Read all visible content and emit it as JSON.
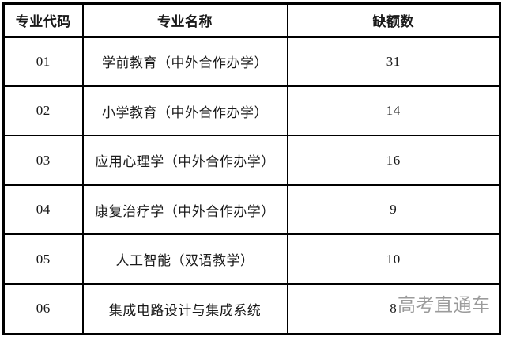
{
  "table": {
    "title_semantic": "major-vacancy-table",
    "headers": {
      "code": "专业代码",
      "name": "专业名称",
      "vacancy": "缺额数"
    },
    "rows": [
      {
        "code": "01",
        "name": "学前教育（中外合作办学）",
        "vacancy": "31"
      },
      {
        "code": "02",
        "name": "小学教育（中外合作办学）",
        "vacancy": "14"
      },
      {
        "code": "03",
        "name": "应用心理学（中外合作办学）",
        "vacancy": "16"
      },
      {
        "code": "04",
        "name": "康复治疗学（中外合作办学）",
        "vacancy": "9"
      },
      {
        "code": "05",
        "name": "人工智能（双语教学）",
        "vacancy": "10"
      },
      {
        "code": "06",
        "name": "集成电路设计与集成系统",
        "vacancy": "8"
      }
    ],
    "watermark": "高考直通车",
    "colors": {
      "background": "#ffffff",
      "border": "#000000",
      "text": "#1a1a1a",
      "watermark": "#9b9b9b"
    }
  },
  "chart_data": {
    "type": "table",
    "title": "",
    "columns": [
      "专业代码",
      "专业名称",
      "缺额数"
    ],
    "categories": [
      "学前教育（中外合作办学）",
      "小学教育（中外合作办学）",
      "应用心理学（中外合作办学）",
      "康复治疗学（中外合作办学）",
      "人工智能（双语教学）",
      "集成电路设计与集成系统"
    ],
    "values": [
      31,
      14,
      16,
      9,
      10,
      8
    ]
  }
}
